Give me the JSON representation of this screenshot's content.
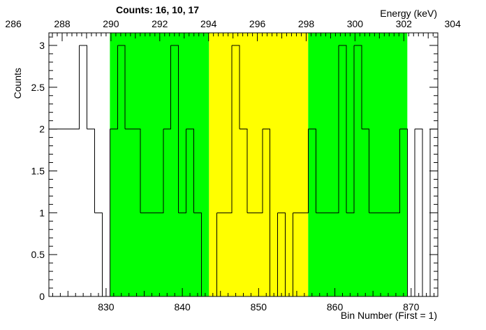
{
  "chart_data": {
    "type": "bar",
    "style": "step-histogram",
    "title": "Counts:   16,   10,   17",
    "xlabel": "Bin Number (First = 1)",
    "ylabel": "Counts",
    "x2label": "Energy (keV)",
    "xlim": [
      822.5,
      873.5
    ],
    "ylim": [
      0,
      3.15
    ],
    "x_ticks": [
      830,
      840,
      850,
      860,
      870
    ],
    "y_ticks": [
      0,
      0.5,
      1,
      1.5,
      2,
      2.5,
      3
    ],
    "y_tick_labels": [
      "0",
      "0.5",
      "1",
      "1.5",
      "2",
      "2.5",
      "3"
    ],
    "energy_ticks": [
      286,
      288,
      290,
      292,
      294,
      296,
      298,
      300,
      302,
      304
    ],
    "energy_axis_map": {
      "bin_a": 830,
      "energy_a": 289.8,
      "bin_b": 870,
      "energy_b": 302.3
    },
    "bands": [
      {
        "from": 830.5,
        "to": 843.5,
        "color": "#00ff00"
      },
      {
        "from": 843.5,
        "to": 856.5,
        "color": "#ffff00"
      },
      {
        "from": 856.5,
        "to": 869.5,
        "color": "#00ff00"
      }
    ],
    "bins": [
      823,
      824,
      825,
      826,
      827,
      828,
      829,
      830,
      831,
      832,
      833,
      834,
      835,
      836,
      837,
      838,
      839,
      840,
      841,
      842,
      843,
      844,
      845,
      846,
      847,
      848,
      849,
      850,
      851,
      852,
      853,
      854,
      855,
      856,
      857,
      858,
      859,
      860,
      861,
      862,
      863,
      864,
      865,
      866,
      867,
      868,
      869,
      870,
      871,
      872,
      873
    ],
    "values": [
      2,
      2,
      2,
      2,
      3,
      2,
      1,
      0,
      2,
      3,
      2,
      2,
      1,
      1,
      1,
      2,
      3,
      1,
      2,
      1,
      0,
      0,
      1,
      1,
      3,
      2,
      1,
      1,
      2,
      0,
      1,
      0,
      1,
      1,
      2,
      1,
      1,
      1,
      3,
      1,
      3,
      2,
      1,
      1,
      1,
      1,
      2,
      0,
      2,
      0,
      2
    ],
    "line_color": "#000000"
  }
}
